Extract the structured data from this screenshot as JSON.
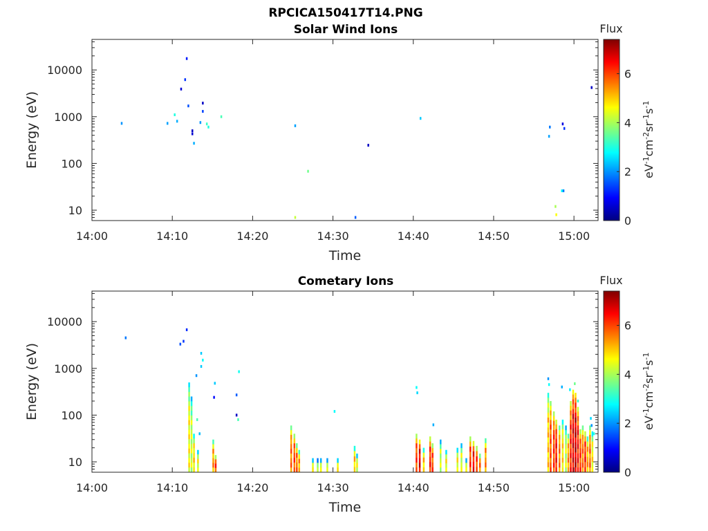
{
  "figure_title": "RPCICA150417T14.PNG",
  "colors": {
    "colormap": [
      "#00007f",
      "#0000ff",
      "#007fff",
      "#00ffff",
      "#7fff7f",
      "#ffff00",
      "#ff7f00",
      "#ff0000",
      "#7f0000"
    ],
    "axis": "#262626"
  },
  "chart_data": [
    {
      "type": "heatmap",
      "title": "Solar Wind Ions",
      "xlabel": "Time",
      "ylabel": "Energy (eV)",
      "x_ticks": [
        "14:00",
        "14:10",
        "14:20",
        "14:30",
        "14:40",
        "14:50",
        "15:00"
      ],
      "x_tick_minutes": [
        0,
        10,
        20,
        30,
        40,
        50,
        60
      ],
      "xlim_minutes": [
        0,
        63
      ],
      "y_scale": "log",
      "ylim": [
        6,
        45000
      ],
      "y_ticks": [
        "10",
        "100",
        "1000",
        "10000"
      ],
      "y_tick_values": [
        10,
        100,
        1000,
        10000
      ],
      "grid": false,
      "colorbar": {
        "label": "Flux",
        "unit_parts": [
          "eV",
          "-1",
          "cm",
          "-2",
          "sr",
          "-1",
          "s",
          "-1"
        ],
        "ticks": [
          "0",
          "2",
          "4",
          "6"
        ],
        "tick_values": [
          0,
          2,
          4,
          6
        ],
        "range": [
          0,
          7.4
        ]
      },
      "points": [
        [
          3.7,
          720,
          2.0
        ],
        [
          9.4,
          720,
          2.1
        ],
        [
          10.3,
          1100,
          3.0
        ],
        [
          10.6,
          800,
          2.2
        ],
        [
          11.6,
          6200,
          1.3
        ],
        [
          11.8,
          17500,
          1.1
        ],
        [
          11.1,
          3900,
          0.6
        ],
        [
          12.0,
          1700,
          1.5
        ],
        [
          12.5,
          500,
          0.5
        ],
        [
          12.5,
          430,
          0.6
        ],
        [
          12.7,
          270,
          2.2
        ],
        [
          13.5,
          750,
          2.0
        ],
        [
          13.8,
          1950,
          0.5
        ],
        [
          13.8,
          1300,
          1.4
        ],
        [
          14.3,
          700,
          3.2
        ],
        [
          14.5,
          600,
          3.0
        ],
        [
          16.1,
          1000,
          3.3
        ],
        [
          25.3,
          640,
          2.1
        ],
        [
          25.3,
          7,
          4.2
        ],
        [
          26.9,
          68,
          3.6
        ],
        [
          32.8,
          7,
          1.6
        ],
        [
          34.4,
          245,
          0.5
        ],
        [
          40.9,
          920,
          2.4
        ],
        [
          56.9,
          380,
          2.1
        ],
        [
          57.0,
          600,
          1.8
        ],
        [
          57.7,
          12,
          4.0
        ],
        [
          57.8,
          8,
          4.6
        ],
        [
          58.5,
          26,
          2.8
        ],
        [
          58.6,
          700,
          0.7
        ],
        [
          58.7,
          26,
          1.8
        ],
        [
          58.8,
          560,
          1.3
        ],
        [
          62.2,
          4200,
          0.5
        ]
      ]
    },
    {
      "type": "heatmap",
      "title": "Cometary Ions",
      "xlabel": "Time",
      "ylabel": "Energy (eV)",
      "x_ticks": [
        "14:00",
        "14:10",
        "14:20",
        "14:30",
        "14:40",
        "14:50",
        "15:00"
      ],
      "x_tick_minutes": [
        0,
        10,
        20,
        30,
        40,
        50,
        60
      ],
      "xlim_minutes": [
        0,
        63
      ],
      "y_scale": "log",
      "ylim": [
        6,
        45000
      ],
      "y_ticks": [
        "10",
        "100",
        "1000",
        "10000"
      ],
      "y_tick_values": [
        10,
        100,
        1000,
        10000
      ],
      "grid": false,
      "colorbar": {
        "label": "Flux",
        "unit_parts": [
          "eV",
          "-1",
          "cm",
          "-2",
          "sr",
          "-1",
          "s",
          "-1"
        ],
        "ticks": [
          "0",
          "2",
          "4",
          "6"
        ],
        "tick_values": [
          0,
          2,
          4,
          6
        ],
        "range": [
          0,
          7.4
        ]
      },
      "points": [
        [
          4.2,
          4500,
          1.8
        ],
        [
          11.0,
          3300,
          1.5
        ],
        [
          11.4,
          3800,
          1.3
        ],
        [
          11.8,
          6700,
          1.2
        ],
        [
          13.6,
          2100,
          2.4
        ],
        [
          13.8,
          1500,
          2.8
        ],
        [
          13.6,
          1100,
          2.4
        ],
        [
          13.0,
          700,
          2.0
        ],
        [
          15.3,
          480,
          2.4
        ],
        [
          15.2,
          240,
          1.0
        ],
        [
          18.0,
          270,
          1.6
        ],
        [
          18.3,
          850,
          2.9
        ],
        [
          18.0,
          100,
          0.5
        ],
        [
          18.2,
          80,
          3.3
        ],
        [
          30.2,
          120,
          2.8
        ],
        [
          40.4,
          390,
          2.8
        ],
        [
          40.5,
          300,
          2.5
        ],
        [
          42.5,
          62,
          2.2
        ],
        [
          56.8,
          600,
          2.0
        ],
        [
          56.9,
          450,
          2.8
        ],
        [
          58.5,
          400,
          2.2
        ],
        [
          59.5,
          350,
          2.7
        ],
        [
          60.1,
          470,
          3.6
        ],
        [
          60.5,
          200,
          3.2
        ],
        [
          62.1,
          85,
          2.5
        ],
        [
          62.2,
          60,
          2.0
        ],
        [
          62.5,
          40,
          3.0
        ],
        [
          13.4,
          40,
          2.3
        ],
        [
          13.1,
          80,
          3.3
        ]
      ],
      "columns": [
        [
          12.1,
          6,
          500,
          4.6
        ],
        [
          12.4,
          6,
          250,
          4.2
        ],
        [
          12.7,
          6,
          40,
          4.8
        ],
        [
          13.2,
          6,
          18,
          4.5
        ],
        [
          15.1,
          6,
          30,
          5.3
        ],
        [
          15.4,
          6,
          14,
          6.0
        ],
        [
          24.8,
          6,
          60,
          5.6
        ],
        [
          25.2,
          6,
          40,
          5.9
        ],
        [
          25.5,
          6,
          25,
          5.6
        ],
        [
          25.8,
          6,
          18,
          5.3
        ],
        [
          27.5,
          6,
          12,
          4.4
        ],
        [
          28.1,
          6,
          12,
          3.8
        ],
        [
          28.5,
          6,
          12,
          4.2
        ],
        [
          29.3,
          6,
          12,
          4.1
        ],
        [
          30.6,
          6,
          12,
          4.5
        ],
        [
          32.7,
          6,
          22,
          5.0
        ],
        [
          33.0,
          6,
          15,
          4.4
        ],
        [
          40.4,
          6,
          40,
          6.0
        ],
        [
          40.8,
          6,
          30,
          6.6
        ],
        [
          41.3,
          6,
          20,
          5.0
        ],
        [
          42.1,
          6,
          35,
          6.2
        ],
        [
          42.4,
          6,
          25,
          5.9
        ],
        [
          43.4,
          6,
          30,
          4.2
        ],
        [
          44.1,
          6,
          18,
          4.6
        ],
        [
          45.5,
          6,
          20,
          4.6
        ],
        [
          46.0,
          6,
          25,
          4.3
        ],
        [
          46.6,
          6,
          12,
          4.2
        ],
        [
          47.1,
          6,
          35,
          6.0
        ],
        [
          47.5,
          6,
          28,
          6.4
        ],
        [
          47.9,
          6,
          22,
          6.0
        ],
        [
          48.3,
          6,
          15,
          5.6
        ],
        [
          49.0,
          6,
          32,
          5.4
        ],
        [
          56.8,
          6,
          300,
          5.0
        ],
        [
          57.1,
          6,
          200,
          5.8
        ],
        [
          57.5,
          6,
          120,
          6.0
        ],
        [
          57.8,
          6,
          80,
          6.3
        ],
        [
          58.2,
          6,
          60,
          5.5
        ],
        [
          58.6,
          6,
          80,
          4.8
        ],
        [
          59.0,
          6,
          60,
          4.2
        ],
        [
          59.3,
          6,
          40,
          5.4
        ],
        [
          59.6,
          6,
          200,
          6.2
        ],
        [
          59.9,
          6,
          350,
          6.6
        ],
        [
          60.2,
          6,
          300,
          6.8
        ],
        [
          60.5,
          6,
          150,
          6.3
        ],
        [
          60.8,
          6,
          50,
          6.0
        ],
        [
          61.1,
          6,
          60,
          5.6
        ],
        [
          61.4,
          6,
          45,
          6.2
        ],
        [
          61.7,
          6,
          35,
          5.2
        ],
        [
          62.0,
          6,
          60,
          5.6
        ],
        [
          62.3,
          6,
          45,
          4.7
        ]
      ]
    }
  ]
}
